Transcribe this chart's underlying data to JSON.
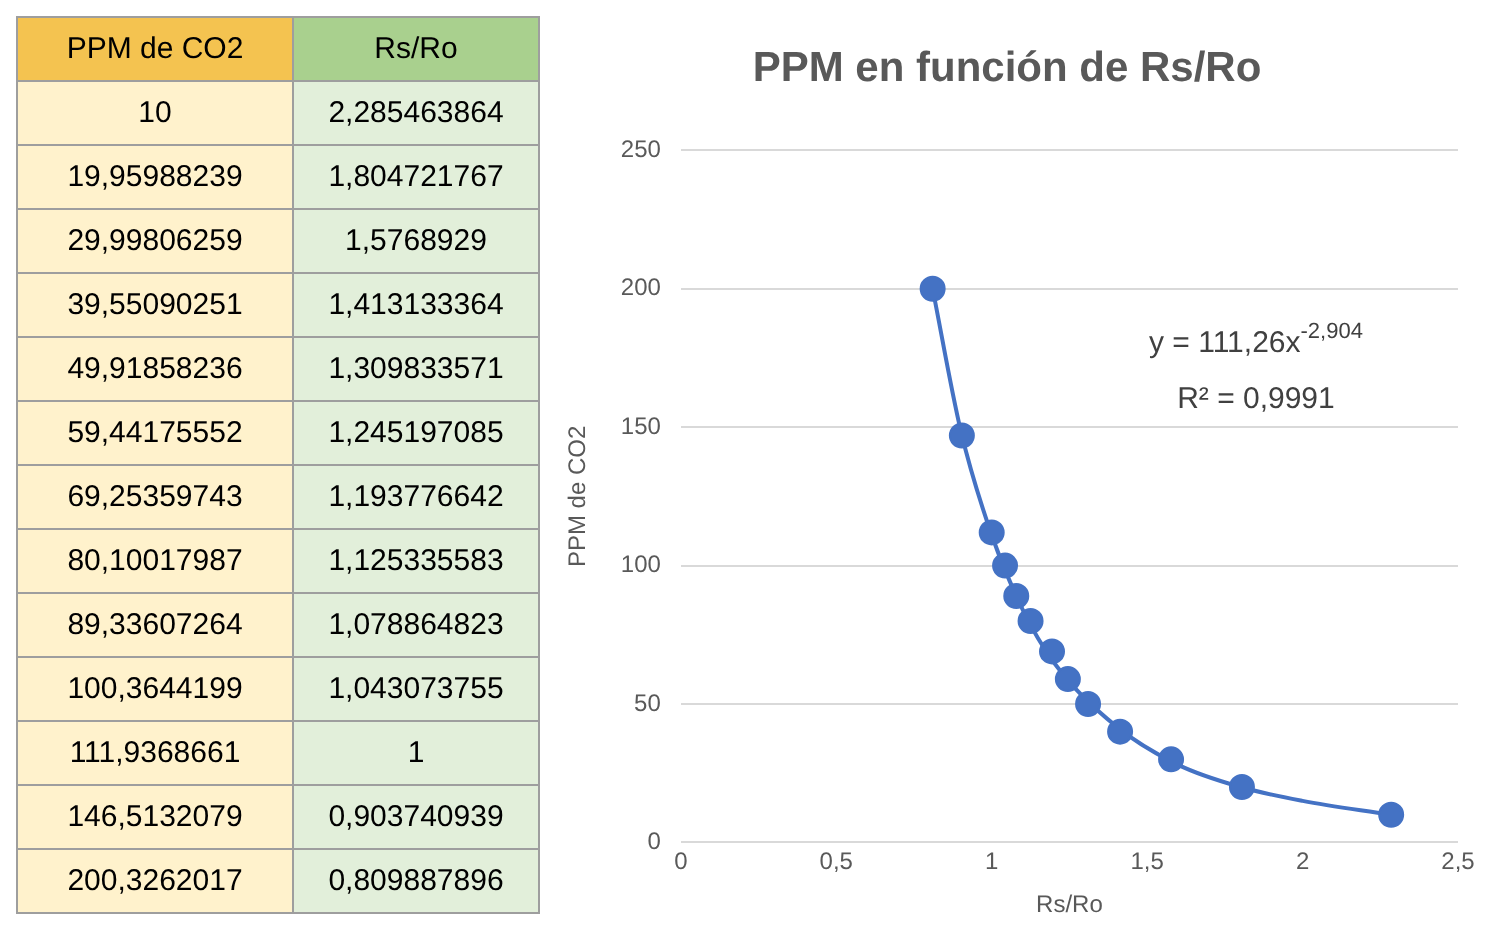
{
  "chart_data": [
    {
      "type": "other",
      "categories": [
        "PPM de CO2",
        "Rs/Ro"
      ],
      "cells": [
        [
          "10",
          "2,285463864"
        ],
        [
          "19,95988239",
          "1,804721767"
        ],
        [
          "29,99806259",
          "1,5768929"
        ],
        [
          "39,55090251",
          "1,413133364"
        ],
        [
          "49,91858236",
          "1,309833571"
        ],
        [
          "59,44175552",
          "1,245197085"
        ],
        [
          "69,25359743",
          "1,193776642"
        ],
        [
          "80,10017987",
          "1,125335583"
        ],
        [
          "89,33607264",
          "1,078864823"
        ],
        [
          "100,3644199",
          "1,043073755"
        ],
        [
          "111,9368661",
          "1"
        ],
        [
          "146,5132079",
          "0,903740939"
        ],
        [
          "200,3262017",
          "0,809887896"
        ]
      ]
    },
    {
      "type": "scatter",
      "title": "PPM en función de Rs/Ro",
      "xlabel": "Rs/Ro",
      "ylabel": "PPM de CO2",
      "x": [
        2.285,
        1.805,
        1.577,
        1.413,
        1.31,
        1.245,
        1.194,
        1.125,
        1.079,
        1.043,
        1,
        0.904,
        0.81
      ],
      "series": [
        {
          "type": "scatter",
          "color": "#4472c4",
          "marker": "circle",
          "values": [
            10,
            20,
            30,
            40,
            50,
            59,
            69,
            80,
            89,
            100,
            112,
            147,
            200
          ]
        },
        {
          "type": "line",
          "color": "#4472c4",
          "marker": "none",
          "line_style": "solid",
          "x": [
            0.81,
            0.9,
            1.0,
            1.1,
            1.2,
            1.4,
            1.6,
            1.8,
            2.0,
            2.28
          ],
          "values": [
            200,
            149,
            111,
            84,
            65,
            42,
            28,
            20,
            15,
            10
          ]
        }
      ],
      "xlim": [
        0,
        2.5
      ],
      "xticks": [
        0,
        {
          "value": 0.5,
          "label": "0,5"
        },
        1,
        {
          "value": 1.5,
          "label": "1,5"
        },
        2,
        {
          "value": 2.5,
          "label": "2,5"
        }
      ],
      "ylim": [
        0,
        250
      ],
      "yticks": [
        0,
        50,
        100,
        150,
        200,
        250
      ],
      "grid": "y",
      "legend": false,
      "annotations": [
        "y = 111,26x$^{-2,904}$",
        "R² = 0,9991"
      ]
    }
  ]
}
